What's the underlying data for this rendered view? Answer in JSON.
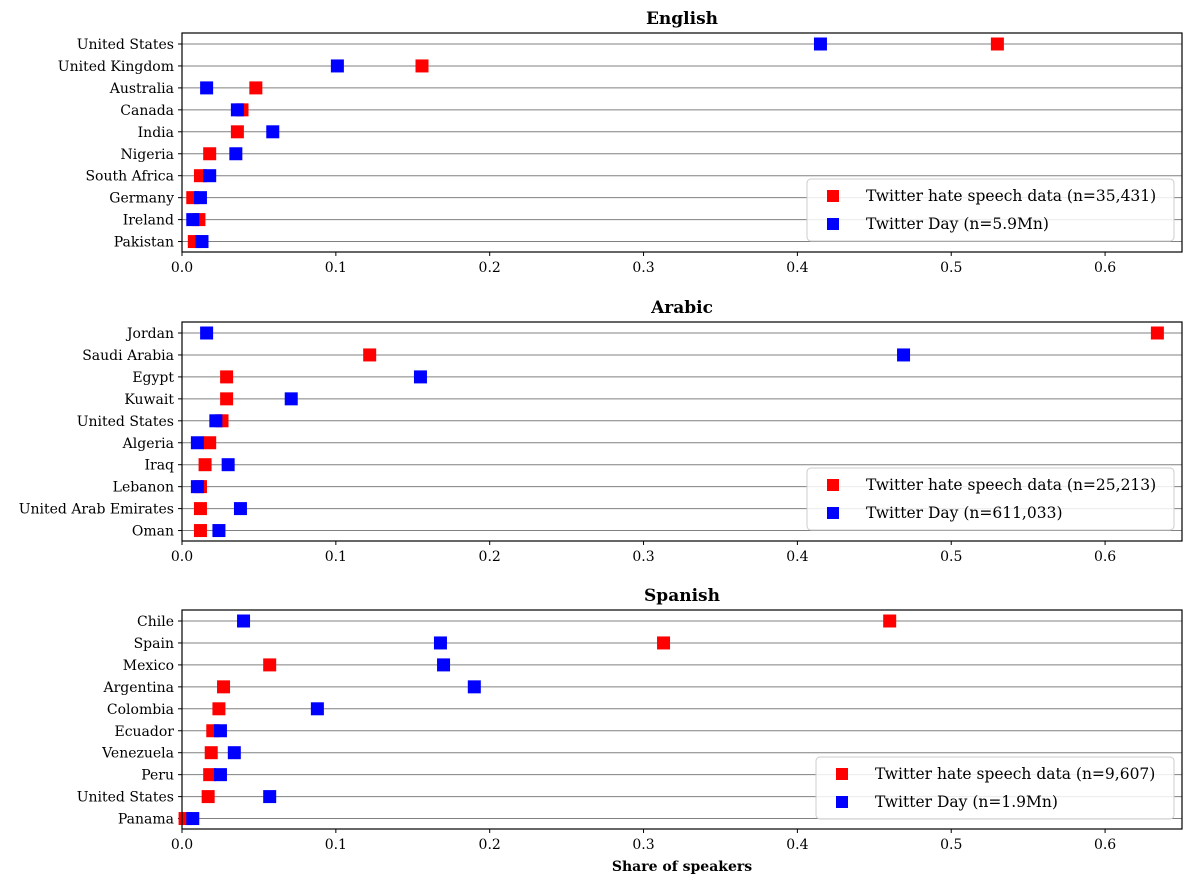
{
  "chart_data": [
    {
      "type": "scatter",
      "title": "English",
      "xlim": [
        0,
        0.65
      ],
      "x_ticks": [
        "0.0",
        "0.1",
        "0.2",
        "0.3",
        "0.4",
        "0.5",
        "0.6"
      ],
      "categories": [
        "United States",
        "United Kingdom",
        "Australia",
        "Canada",
        "India",
        "Nigeria",
        "South Africa",
        "Germany",
        "Ireland",
        "Pakistan"
      ],
      "series": [
        {
          "name": "Twitter hate speech data (n=35,431)",
          "color": "#ff0000",
          "values": [
            0.53,
            0.156,
            0.048,
            0.039,
            0.036,
            0.018,
            0.012,
            0.007,
            0.011,
            0.008
          ]
        },
        {
          "name": "Twitter Day (n=5.9Mn)",
          "color": "#0000ff",
          "values": [
            0.415,
            0.101,
            0.016,
            0.036,
            0.059,
            0.035,
            0.018,
            0.012,
            0.007,
            0.013
          ]
        }
      ],
      "legend": "lower-right",
      "grid": "horizontal"
    },
    {
      "type": "scatter",
      "title": "Arabic",
      "xlim": [
        0,
        0.65
      ],
      "x_ticks": [
        "0.0",
        "0.1",
        "0.2",
        "0.3",
        "0.4",
        "0.5",
        "0.6"
      ],
      "categories": [
        "Jordan",
        "Saudi Arabia",
        "Egypt",
        "Kuwait",
        "United States",
        "Algeria",
        "Iraq",
        "Lebanon",
        "United Arab Emirates",
        "Oman"
      ],
      "series": [
        {
          "name": "Twitter hate speech data (n=25,213)",
          "color": "#ff0000",
          "values": [
            0.634,
            0.122,
            0.029,
            0.029,
            0.026,
            0.018,
            0.015,
            0.012,
            0.012,
            0.012
          ]
        },
        {
          "name": "Twitter Day (n=611,033)",
          "color": "#0000ff",
          "values": [
            0.016,
            0.469,
            0.155,
            0.071,
            0.022,
            0.01,
            0.03,
            0.01,
            0.038,
            0.024
          ]
        }
      ],
      "legend": "lower-right",
      "grid": "horizontal"
    },
    {
      "type": "scatter",
      "title": "Spanish",
      "xlim": [
        0,
        0.65
      ],
      "x_ticks": [
        "0.0",
        "0.1",
        "0.2",
        "0.3",
        "0.4",
        "0.5",
        "0.6"
      ],
      "xlabel": "Share of speakers",
      "categories": [
        "Chile",
        "Spain",
        "Mexico",
        "Argentina",
        "Colombia",
        "Ecuador",
        "Venezuela",
        "Peru",
        "United States",
        "Panama"
      ],
      "series": [
        {
          "name": "Twitter hate speech data (n=9,607)",
          "color": "#ff0000",
          "values": [
            0.46,
            0.313,
            0.057,
            0.027,
            0.024,
            0.02,
            0.019,
            0.018,
            0.017,
            0.002
          ]
        },
        {
          "name": "Twitter Day (n=1.9Mn)",
          "color": "#0000ff",
          "values": [
            0.04,
            0.168,
            0.17,
            0.19,
            0.088,
            0.025,
            0.034,
            0.025,
            0.057,
            0.007
          ]
        }
      ],
      "legend": "lower-right",
      "grid": "horizontal"
    }
  ]
}
